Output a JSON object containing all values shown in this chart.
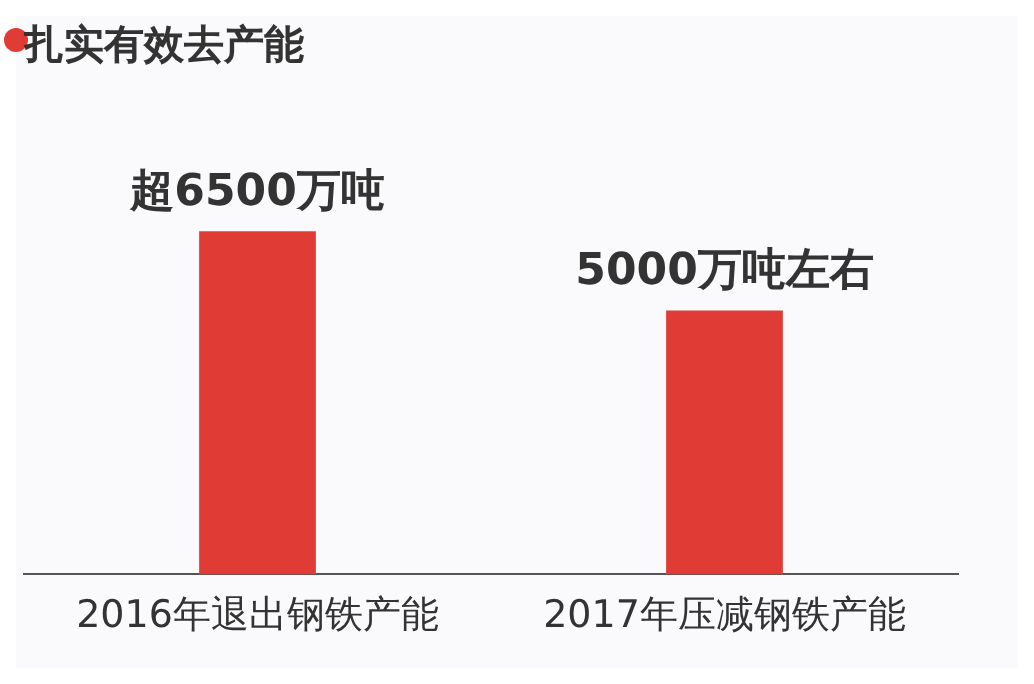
{
  "chart_data": {
    "type": "bar",
    "title": "扎实有效去产能",
    "categories": [
      "2016年退出钢铁产能",
      "2017年压减钢铁产能"
    ],
    "values": [
      6500,
      5000
    ],
    "value_labels": [
      "超6500万吨",
      "5000万吨左右"
    ],
    "color": "#e03c35",
    "grid": false,
    "legend": false
  }
}
